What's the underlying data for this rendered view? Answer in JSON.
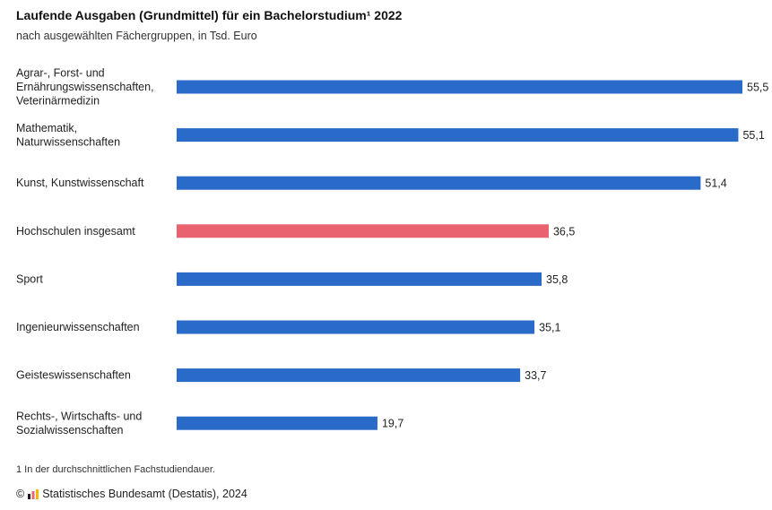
{
  "title": "Laufende Ausgaben (Grundmittel) für ein Bachelorstudium¹ 2022",
  "subtitle": "nach ausgewählten Fächergruppen, in Tsd. Euro",
  "footnote": "1 In der durchschnittlichen Fachstudiendauer.",
  "source": {
    "copyright": "©",
    "text": "Statistisches Bundesamt (Destatis), 2024"
  },
  "colors": {
    "bar": "#2a6ac8",
    "highlight": "#e8636f",
    "logo": [
      "#1a1a1a",
      "#e8636f",
      "#f2b705"
    ]
  },
  "chart_data": {
    "type": "bar",
    "orientation": "horizontal",
    "title": "Laufende Ausgaben (Grundmittel) für ein Bachelorstudium¹ 2022",
    "subtitle": "nach ausgewählten Fächergruppen, in Tsd. Euro",
    "xlim": [
      0,
      55.5
    ],
    "grid": false,
    "categories": [
      [
        "Agrar-, Forst- und",
        "Ernährungswissenschaften,",
        "Veterinärmedizin"
      ],
      [
        "Mathematik,",
        "Naturwissenschaften"
      ],
      [
        "Kunst, Kunstwissenschaft"
      ],
      [
        "Hochschulen insgesamt"
      ],
      [
        "Sport"
      ],
      [
        "Ingenieurwissenschaften"
      ],
      [
        "Geisteswissenschaften"
      ],
      [
        "Rechts-, Wirtschafts- und",
        "Sozialwissenschaften"
      ]
    ],
    "values": [
      55.5,
      55.1,
      51.4,
      36.5,
      35.8,
      35.1,
      33.7,
      19.7
    ],
    "value_labels": [
      "55,5",
      "55,1",
      "51,4",
      "36,5",
      "35,8",
      "35,1",
      "33,7",
      "19,7"
    ],
    "highlight_index": 3
  }
}
